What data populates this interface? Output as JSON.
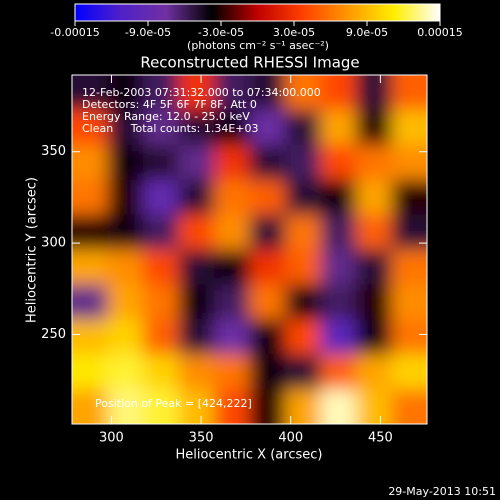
{
  "chart_data": {
    "type": "heatmap",
    "title": "Reconstructed RHESSI Image",
    "x_label": "Heliocentric X (arcsec)",
    "y_label": "Heliocentric Y (arcsec)",
    "colorbar_label": "(photons cm⁻² s⁻¹ asec⁻²)",
    "annotations": [
      "12-Feb-2003 07:31:32.000 to 07:34:00.000",
      "Detectors: 4F 5F 6F 7F 8F, Att 0",
      "Energy Range: 12.0 - 25.0 keV",
      "Clean     Total counts: 1.34E+03"
    ],
    "peak_note": "Position of Peak = [424,222]",
    "timestamp": "29-May-2013 10:51",
    "xlim": [
      278,
      476
    ],
    "ylim": [
      201,
      392
    ],
    "xticks": [
      300,
      350,
      400,
      450
    ],
    "yticks": [
      250,
      300,
      350
    ],
    "clim": [
      -0.00015,
      0.00015
    ],
    "cticks": [
      -0.00015,
      {
        "value": -9e-05,
        "label": "-9.0e-05"
      },
      {
        "value": -3e-05,
        "label": "-3.0e-05"
      },
      {
        "value": 3e-05,
        "label": "3.0e-05"
      },
      {
        "value": 9e-05,
        "label": "9.0e-05"
      },
      0.00015
    ],
    "colormap": [
      "#0000ff",
      "#5020c8",
      "#7030a0",
      "#000000",
      "#c00000",
      "#ff4000",
      "#ff9900",
      "#ffee00",
      "#ffffff"
    ],
    "z": [
      [
        -5e-05,
        -4e-05,
        -6e-05,
        3e-05,
        -6e-05,
        -5e-05,
        6e-05,
        4e-05,
        -5e-05,
        5e-05
      ],
      [
        4e-05,
        -5e-05,
        -7e-05,
        -5e-05,
        -4e-05,
        -8e-05,
        -5e-05,
        8e-05,
        -3e-05,
        9e-05
      ],
      [
        7e-05,
        -4e-05,
        -5e-05,
        -7e-05,
        3e-05,
        -5e-05,
        -6e-05,
        4e-05,
        6e-05,
        7e-05
      ],
      [
        6e-05,
        -3e-05,
        -9e-05,
        -5e-05,
        6e-05,
        5e-05,
        -5e-05,
        -4e-05,
        8e-05,
        -3e-05
      ],
      [
        -3e-05,
        -4e-05,
        -6e-05,
        4e-05,
        7e-05,
        -5e-05,
        6e-05,
        -6e-05,
        5e-05,
        -5e-05
      ],
      [
        8e-05,
        7e-05,
        4e-05,
        -5e-05,
        -4e-05,
        3e-05,
        5e-05,
        -7e-05,
        -5e-05,
        6e-05
      ],
      [
        -7e-05,
        8e-05,
        6e-05,
        -4e-05,
        -6e-05,
        6e-05,
        -4e-05,
        -6e-05,
        -3e-05,
        7e-05
      ],
      [
        9e-05,
        0.0001,
        5e-05,
        -5e-05,
        -8e-05,
        -4e-05,
        4e-05,
        -0.0001,
        -4e-05,
        6e-05
      ],
      [
        0.00011,
        0.00012,
        0.0001,
        7e-05,
        6e-05,
        -4e-05,
        -5e-05,
        5e-05,
        8e-05,
        0.0001
      ],
      [
        8e-05,
        0.00013,
        0.00012,
        9e-05,
        4e-05,
        -3e-05,
        8e-05,
        0.00014,
        9e-05,
        6e-05
      ]
    ]
  }
}
